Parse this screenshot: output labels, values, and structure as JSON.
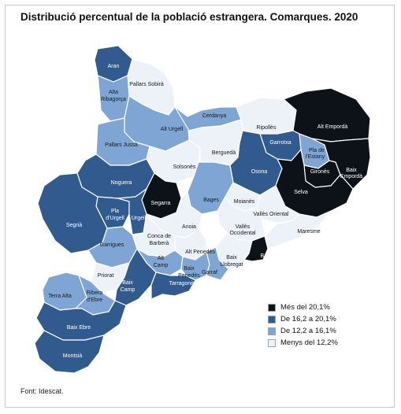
{
  "title": "Distribució percentual de la població estrangera. Comarques. 2020",
  "source": "Font: Idescat.",
  "colors": {
    "c1": "#0d1219",
    "c2": "#315b8e",
    "c3": "#7ea5d4",
    "c4": "#edf1f8",
    "border": "#ffffff"
  },
  "legend": [
    {
      "label": "Més del 20,1%",
      "class": "c1"
    },
    {
      "label": "De 16,2 a 20,1%",
      "class": "c2"
    },
    {
      "label": "De 12,2 a 16,1%",
      "class": "c3"
    },
    {
      "label": "Menys del 12,2%",
      "class": "c4"
    }
  ],
  "comarques": [
    {
      "name": "Aran",
      "class": "c2"
    },
    {
      "name": "Pallars Sobirà",
      "class": "c4"
    },
    {
      "name": "Alta Ribagorça",
      "class": "c3"
    },
    {
      "name": "Alt Urgell",
      "class": "c3"
    },
    {
      "name": "Cerdanya",
      "class": "c3"
    },
    {
      "name": "Ripollès",
      "class": "c4"
    },
    {
      "name": "Alt Empordà",
      "class": "c1"
    },
    {
      "name": "Pallars Jussà",
      "class": "c3"
    },
    {
      "name": "Solsonès",
      "class": "c4"
    },
    {
      "name": "Berguedà",
      "class": "c4"
    },
    {
      "name": "Garrotxa",
      "class": "c2"
    },
    {
      "name": "Pla de l'Estany",
      "class": "c3"
    },
    {
      "name": "Osona",
      "class": "c2"
    },
    {
      "name": "Gironès",
      "class": "c1"
    },
    {
      "name": "Baix Empordà",
      "class": "c1"
    },
    {
      "name": "Selva",
      "class": "c1"
    },
    {
      "name": "Noguera",
      "class": "c2"
    },
    {
      "name": "Segarra",
      "class": "c1"
    },
    {
      "name": "Bages",
      "class": "c3"
    },
    {
      "name": "Moianès",
      "class": "c4"
    },
    {
      "name": "Vallès Oriental",
      "class": "c4"
    },
    {
      "name": "Maresme",
      "class": "c4"
    },
    {
      "name": "Pla d'Urgell",
      "class": "c2"
    },
    {
      "name": "Urgell",
      "class": "c2"
    },
    {
      "name": "Segrià",
      "class": "c2"
    },
    {
      "name": "Anoia",
      "class": "c4"
    },
    {
      "name": "Vallès Occidental",
      "class": "c4"
    },
    {
      "name": "Conca de Barberà",
      "class": "c4"
    },
    {
      "name": "Garrigues",
      "class": "c3"
    },
    {
      "name": "Alt Penedès",
      "class": "c4"
    },
    {
      "name": "Baix Llobregat",
      "class": "c4"
    },
    {
      "name": "Barcelonès",
      "class": "c1"
    },
    {
      "name": "Alt Camp",
      "class": "c3"
    },
    {
      "name": "Baix Penedès",
      "class": "c3"
    },
    {
      "name": "Garraf",
      "class": "c3"
    },
    {
      "name": "Priorat",
      "class": "c4"
    },
    {
      "name": "Baix Camp",
      "class": "c2"
    },
    {
      "name": "Tarragonès",
      "class": "c2"
    },
    {
      "name": "Terra Alta",
      "class": "c3"
    },
    {
      "name": "Ribera d'Ebre",
      "class": "c3"
    },
    {
      "name": "Baix Ebre",
      "class": "c2"
    },
    {
      "name": "Montsià",
      "class": "c2"
    }
  ]
}
